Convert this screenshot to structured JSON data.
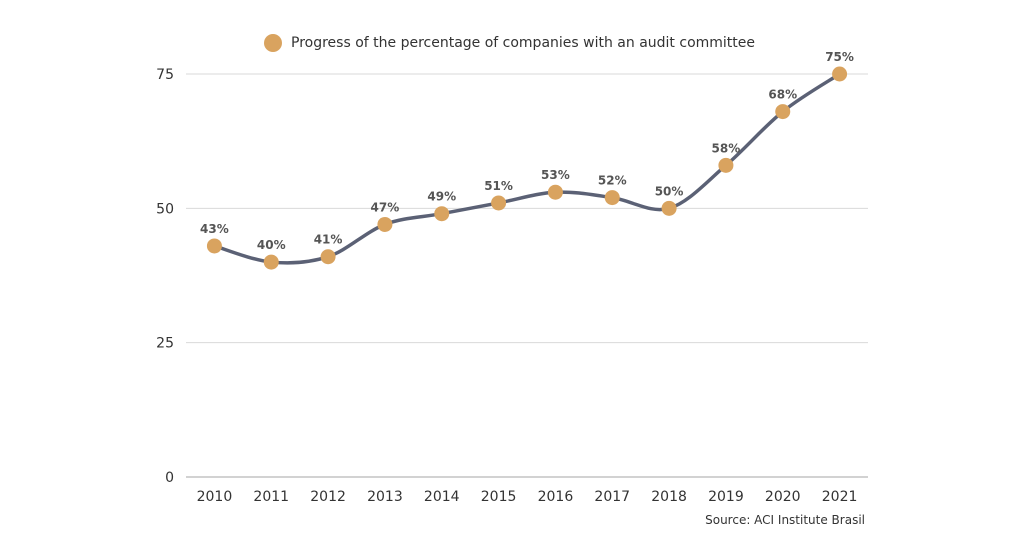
{
  "chart_data": {
    "type": "line",
    "title": "",
    "xlabel": "",
    "ylabel": "",
    "categories": [
      "2010",
      "2011",
      "2012",
      "2013",
      "2014",
      "2015",
      "2016",
      "2017",
      "2018",
      "2019",
      "2020",
      "2021"
    ],
    "series": [
      {
        "name": "Progress of the percentage of companies with an audit committee",
        "values": [
          43,
          40,
          41,
          47,
          49,
          51,
          53,
          52,
          50,
          58,
          68,
          75
        ],
        "labels": [
          "43%",
          "40%",
          "41%",
          "47%",
          "49%",
          "51%",
          "53%",
          "52%",
          "50%",
          "58%",
          "68%",
          "75%"
        ]
      }
    ],
    "ylim": [
      0,
      75
    ],
    "yticks": [
      0,
      25,
      50,
      75
    ],
    "grid": true,
    "legend_position": "top-center",
    "source": "Source: ACI Institute Brasil"
  },
  "colors": {
    "line": "#5b6175",
    "marker": "#d9a35f",
    "grid": "#d9d9d9",
    "axis": "#a6a6a6",
    "text": "#333333",
    "label": "#555555"
  }
}
